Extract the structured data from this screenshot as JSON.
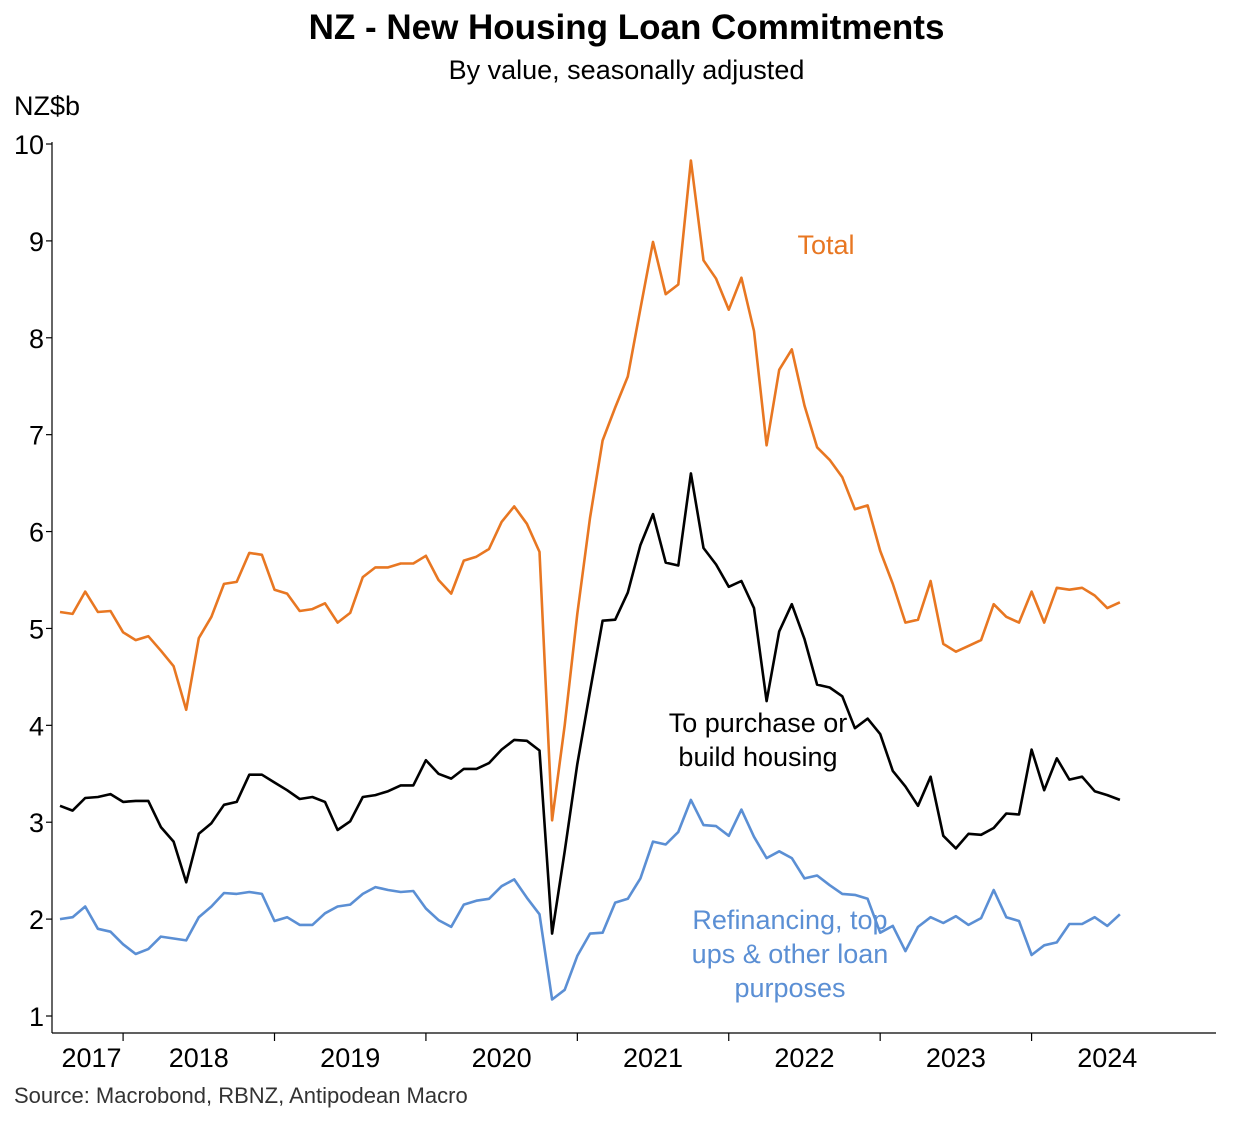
{
  "title": "NZ - New Housing Loan Commitments",
  "subtitle": "By value, seasonally adjusted",
  "source": "Source: Macrobond, RBNZ, Antipodean Macro",
  "chart_data": {
    "type": "line",
    "ylabel": "NZ$b",
    "xlabel": "",
    "ylim": [
      1,
      10
    ],
    "yticks": [
      "1",
      "2",
      "3",
      "4",
      "5",
      "6",
      "7",
      "8",
      "9",
      "10"
    ],
    "xticks": [
      "2017",
      "2018",
      "2019",
      "2020",
      "2021",
      "2022",
      "2023",
      "2024"
    ],
    "grid": false,
    "legend": "inline annotations",
    "x_start": "2016-08",
    "x_end": "2024-01",
    "series": [
      {
        "name": "Total",
        "color": "#E87722",
        "values": [
          5.17,
          5.15,
          5.38,
          5.17,
          5.18,
          4.96,
          4.88,
          4.92,
          4.77,
          4.61,
          4.16,
          4.9,
          5.12,
          5.46,
          5.48,
          5.78,
          5.76,
          5.4,
          5.36,
          5.18,
          5.2,
          5.26,
          5.06,
          5.16,
          5.53,
          5.63,
          5.63,
          5.67,
          5.67,
          5.75,
          5.5,
          5.36,
          5.7,
          5.74,
          5.82,
          6.1,
          6.26,
          6.08,
          5.79,
          3.02,
          4.0,
          5.15,
          6.14,
          6.94,
          7.28,
          7.6,
          8.3,
          8.99,
          8.45,
          8.55,
          9.83,
          8.8,
          8.61,
          8.29,
          8.62,
          8.07,
          6.89,
          7.67,
          7.88,
          7.3,
          6.87,
          6.74,
          6.56,
          6.23,
          6.27,
          5.8,
          5.46,
          5.06,
          5.09,
          5.49,
          4.84,
          4.76,
          4.82,
          4.88,
          5.25,
          5.12,
          5.06,
          5.38,
          5.06,
          5.42,
          5.4,
          5.42,
          5.34,
          5.21,
          5.27
        ]
      },
      {
        "name": "To purchase or build housing",
        "color": "#000000",
        "values": [
          3.17,
          3.12,
          3.25,
          3.26,
          3.29,
          3.21,
          3.22,
          3.22,
          2.95,
          2.8,
          2.38,
          2.88,
          2.99,
          3.18,
          3.21,
          3.49,
          3.49,
          3.41,
          3.33,
          3.24,
          3.26,
          3.21,
          2.92,
          3.01,
          3.26,
          3.28,
          3.32,
          3.38,
          3.38,
          3.64,
          3.5,
          3.45,
          3.55,
          3.55,
          3.61,
          3.75,
          3.85,
          3.84,
          3.74,
          1.85,
          2.7,
          3.6,
          4.35,
          5.08,
          5.09,
          5.37,
          5.86,
          6.18,
          5.68,
          5.65,
          6.6,
          5.83,
          5.66,
          5.43,
          5.49,
          5.21,
          4.25,
          4.97,
          5.25,
          4.89,
          4.42,
          4.39,
          4.3,
          3.97,
          4.07,
          3.91,
          3.53,
          3.37,
          3.17,
          3.47,
          2.86,
          2.73,
          2.88,
          2.87,
          2.94,
          3.09,
          3.08,
          3.75,
          3.33,
          3.66,
          3.44,
          3.47,
          3.32,
          3.28,
          3.23
        ]
      },
      {
        "name": "Refinancing, top ups & other loan purposes",
        "color": "#5B8FD4",
        "values": [
          2.0,
          2.02,
          2.13,
          1.9,
          1.87,
          1.74,
          1.64,
          1.69,
          1.82,
          1.8,
          1.78,
          2.02,
          2.13,
          2.27,
          2.26,
          2.28,
          2.26,
          1.98,
          2.02,
          1.94,
          1.94,
          2.06,
          2.13,
          2.15,
          2.26,
          2.33,
          2.3,
          2.28,
          2.29,
          2.11,
          1.99,
          1.92,
          2.15,
          2.19,
          2.21,
          2.34,
          2.41,
          2.22,
          2.05,
          1.17,
          1.27,
          1.62,
          1.85,
          1.86,
          2.17,
          2.21,
          2.42,
          2.8,
          2.77,
          2.9,
          3.23,
          2.97,
          2.96,
          2.86,
          3.13,
          2.85,
          2.63,
          2.7,
          2.63,
          2.42,
          2.45,
          2.35,
          2.26,
          2.25,
          2.21,
          1.86,
          1.93,
          1.67,
          1.92,
          2.02,
          1.96,
          2.03,
          1.94,
          2.01,
          2.3,
          2.02,
          1.98,
          1.63,
          1.73,
          1.76,
          1.95,
          1.95,
          2.02,
          1.93,
          2.05
        ]
      }
    ],
    "annotations": [
      {
        "series": 0,
        "lines": [
          "Total"
        ]
      },
      {
        "series": 1,
        "lines": [
          "To purchase or",
          "build housing"
        ]
      },
      {
        "series": 2,
        "lines": [
          "Refinancing, top",
          "ups & other loan",
          "purposes"
        ]
      }
    ]
  }
}
